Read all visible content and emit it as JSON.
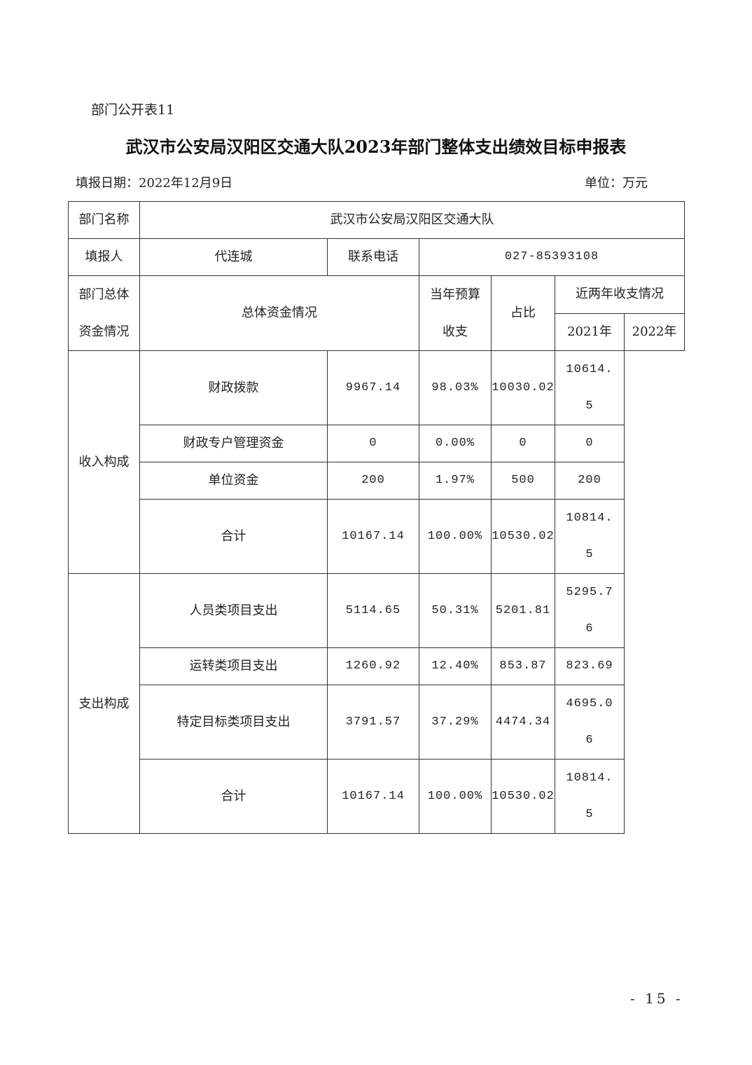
{
  "doc_label": "部门公开表11",
  "title": "武汉市公安局汉阳区交通大队2023年部门整体支出绩效目标申报表",
  "fill_date": "填报日期：2022年12月9日",
  "unit": "单位：万元",
  "page_number": "- 15 -",
  "table": {
    "dept_name_label": "部门名称",
    "dept_name": "武汉市公安局汉阳区交通大队",
    "reporter_label": "填报人",
    "reporter": "代连城",
    "phone_label": "联系电话",
    "phone": "027-85393108",
    "section_label": "部门总体资金情况",
    "overall_label": "总体资金情况",
    "budget_label": "当年预算收支",
    "ratio_label": "占比",
    "recent_label": "近两年收支情况",
    "year1": "2021年",
    "year2": "2022年",
    "income_label": "收入构成",
    "expense_label": "支出构成",
    "income_rows": [
      {
        "name": "财政拨款",
        "budget": "9967.14",
        "ratio": "98.03%",
        "y2021": "10030.02",
        "y2022": "10614.5"
      },
      {
        "name": "财政专户管理资金",
        "budget": "0",
        "ratio": "0.00%",
        "y2021": "0",
        "y2022": "0"
      },
      {
        "name": "单位资金",
        "budget": "200",
        "ratio": "1.97%",
        "y2021": "500",
        "y2022": "200"
      },
      {
        "name": "合计",
        "budget": "10167.14",
        "ratio": "100.00%",
        "y2021": "10530.02",
        "y2022": "10814.5"
      }
    ],
    "expense_rows": [
      {
        "name": "人员类项目支出",
        "budget": "5114.65",
        "ratio": "50.31%",
        "y2021": "5201.81",
        "y2022": "5295.76"
      },
      {
        "name": "运转类项目支出",
        "budget": "1260.92",
        "ratio": "12.40%",
        "y2021": "853.87",
        "y2022": "823.69"
      },
      {
        "name": "特定目标类项目支出",
        "budget": "3791.57",
        "ratio": "37.29%",
        "y2021": "4474.34",
        "y2022": "4695.06"
      },
      {
        "name": "合计",
        "budget": "10167.14",
        "ratio": "100.00%",
        "y2021": "10530.02",
        "y2022": "10814.5"
      }
    ]
  }
}
